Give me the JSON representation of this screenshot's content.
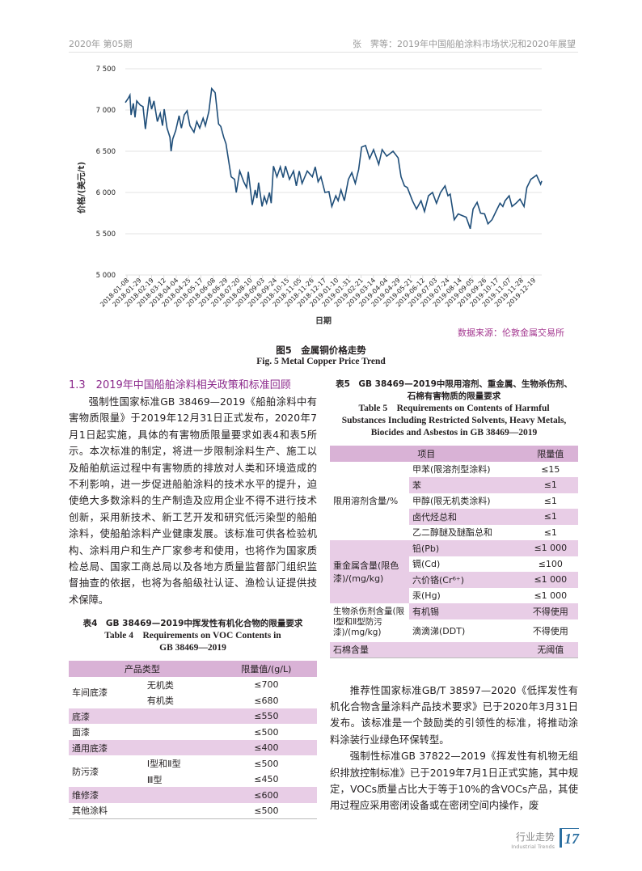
{
  "header": {
    "left": "2020年 第05期",
    "right": "张　霁等：2019年中国船舶涂料市场状况和2020年展望"
  },
  "figure": {
    "caption_cn": "图5　金属铜价格走势",
    "caption_en": "Fig. 5 Metal Copper Price Trend",
    "source": "数据来源：伦敦金属交易所"
  },
  "chart_data": {
    "type": "line",
    "xlabel": "日期",
    "ylabel": "价格/(美元/t)",
    "ylim": [
      5000,
      7500
    ],
    "yticks": [
      "7 500",
      "7 000",
      "6 500",
      "6 000",
      "5 500",
      "5 000"
    ],
    "ytick_values": [
      7500,
      7000,
      6500,
      6000,
      5500,
      5000
    ],
    "grid": true,
    "line_color": "#1f4e79",
    "xticks": [
      "2018-01-08",
      "2018-01-29",
      "2018-02-19",
      "2018-03-12",
      "2018-04-04",
      "2018-04-25",
      "2018-05-17",
      "2018-06-08",
      "2018-06-29",
      "2018-07-20",
      "2018-08-10",
      "2018-09-03",
      "2018-09-24",
      "2018-10-15",
      "2018-11-05",
      "2018-11-26",
      "2018-12-17",
      "2019-01-10",
      "2019-01-31",
      "2019-02-21",
      "2019-03-14",
      "2019-04-04",
      "2019-04-29",
      "2019-05-21",
      "2019-06-12",
      "2019-07-03",
      "2019-07-24",
      "2019-08-14",
      "2019-09-05",
      "2019-09-26",
      "2019-10-17",
      "2019-11-07",
      "2019-11-28",
      "2019-12-19"
    ],
    "x": [
      "2018-01-02",
      "2018-01-07",
      "2018-01-10",
      "2018-01-12",
      "2018-01-16",
      "2018-01-19",
      "2018-01-22",
      "2018-01-28",
      "2018-02-02",
      "2018-02-06",
      "2018-02-13",
      "2018-02-17",
      "2018-02-21",
      "2018-02-27",
      "2018-03-04",
      "2018-03-08",
      "2018-03-11",
      "2018-03-16",
      "2018-03-21",
      "2018-03-23",
      "2018-03-26",
      "2018-03-31",
      "2018-04-06",
      "2018-04-10",
      "2018-04-15",
      "2018-04-20",
      "2018-04-25",
      "2018-05-02",
      "2018-05-07",
      "2018-05-12",
      "2018-05-18",
      "2018-05-22",
      "2018-05-28",
      "2018-06-02",
      "2018-06-08",
      "2018-06-14",
      "2018-06-18",
      "2018-06-23",
      "2018-06-27",
      "2018-07-02",
      "2018-07-06",
      "2018-07-12",
      "2018-07-15",
      "2018-07-21",
      "2018-07-28",
      "2018-08-02",
      "2018-08-05",
      "2018-08-12",
      "2018-08-17",
      "2018-08-20",
      "2018-08-23",
      "2018-08-29",
      "2018-09-02",
      "2018-09-06",
      "2018-09-11",
      "2018-09-14",
      "2018-09-18",
      "2018-09-24",
      "2018-09-30",
      "2018-10-05",
      "2018-10-09",
      "2018-10-16",
      "2018-10-23",
      "2018-10-28",
      "2018-11-02",
      "2018-11-07",
      "2018-11-16",
      "2018-11-25",
      "2018-11-30",
      "2018-12-05",
      "2018-12-10",
      "2018-12-17",
      "2018-12-24",
      "2018-12-29",
      "2019-01-05",
      "2019-01-09",
      "2019-01-14",
      "2019-01-20",
      "2019-01-27",
      "2019-02-02",
      "2019-02-08",
      "2019-02-14",
      "2019-02-19",
      "2019-02-26",
      "2019-03-05",
      "2019-03-12",
      "2019-03-21",
      "2019-03-27",
      "2019-04-04",
      "2019-04-15",
      "2019-04-24",
      "2019-04-29",
      "2019-05-05",
      "2019-05-10",
      "2019-05-19",
      "2019-05-26",
      "2019-06-03",
      "2019-06-09",
      "2019-06-16",
      "2019-06-23",
      "2019-06-30",
      "2019-07-07",
      "2019-07-15",
      "2019-07-20",
      "2019-07-24",
      "2019-07-31",
      "2019-08-07",
      "2019-08-14",
      "2019-08-21",
      "2019-08-28",
      "2019-09-02",
      "2019-09-09",
      "2019-09-15",
      "2019-09-22",
      "2019-09-28",
      "2019-10-05",
      "2019-10-12",
      "2019-10-19",
      "2019-10-24",
      "2019-10-28",
      "2019-11-04",
      "2019-11-09",
      "2019-11-16",
      "2019-11-23",
      "2019-11-30",
      "2019-12-05",
      "2019-12-12",
      "2019-12-22",
      "2019-12-29",
      "2019-12-31"
    ],
    "y": [
      7090,
      7140,
      7180,
      6940,
      7080,
      6910,
      7110,
      7060,
      7040,
      6770,
      7160,
      7010,
      7110,
      6860,
      6960,
      6810,
      7010,
      6780,
      6670,
      6500,
      6650,
      6750,
      6930,
      6780,
      6940,
      6990,
      6810,
      6730,
      6860,
      6780,
      6900,
      6810,
      6980,
      7260,
      7210,
      6830,
      6800,
      6670,
      6590,
      6370,
      6190,
      6160,
      6000,
      6260,
      6130,
      6060,
      6250,
      5850,
      6030,
      5930,
      6120,
      5830,
      5950,
      5870,
      6000,
      5870,
      6320,
      6190,
      6310,
      6180,
      6320,
      6160,
      6260,
      6080,
      6260,
      6110,
      6260,
      6190,
      6310,
      6130,
      6190,
      6000,
      6010,
      5830,
      5960,
      5900,
      6030,
      5900,
      6160,
      6240,
      6110,
      6280,
      6550,
      6570,
      6410,
      6520,
      6340,
      6520,
      6440,
      6500,
      6420,
      6190,
      6080,
      6060,
      5900,
      5800,
      5900,
      5770,
      5960,
      6000,
      5870,
      6000,
      6080,
      5960,
      5980,
      5670,
      5740,
      5720,
      5700,
      5560,
      5800,
      5880,
      5750,
      5740,
      5620,
      5670,
      5770,
      5870,
      5830,
      5900,
      5960,
      5830,
      5870,
      5920,
      5830,
      6060,
      6160,
      6210,
      6100,
      6140
    ]
  },
  "left": {
    "section": "1.3　2019年中国船舶涂料相关政策和标准回顾",
    "paragraph": "强制性国家标准GB 38469—2019《船舶涂料中有害物质限量》于2019年12月31日正式发布，2020年7月1日起实施，具体的有害物质限量要求如表4和表5所示。本次标准的制定，将进一步限制涂料生产、施工以及船舶航运过程中有害物质的排放对人类和环境造成的不利影响，进一步促进船舶涂料的技术水平的提升，迫使绝大多数涂料的生产制造及应用企业不得不进行技术创新，采用新技术、新工艺开发和研究低污染型的船舶涂料，使船舶涂料产业健康发展。该标准可供各检验机构、涂料用户和生产厂家参考和使用，也将作为国家质检总局、国家工商总局以及各地方质量监督部门组织监督抽查的依据，也将为各船级社认证、渔检认证提供技术保障。"
  },
  "table4": {
    "caption_cn": "表4　GB 38469—2019中挥发性有机化合物的限量要求",
    "caption_en1": "Table 4　Requirements on VOC Contents in",
    "caption_en2": "GB 38469—2019",
    "head": [
      "产品类型",
      "限量值/(g/L)"
    ],
    "rows": [
      {
        "cat": "车间底漆",
        "sub": "无机类",
        "val": "≤700"
      },
      {
        "sub": "有机类",
        "val": "≤680"
      },
      {
        "cat": "底漆",
        "val": "≤550"
      },
      {
        "cat": "面漆",
        "val": "≤500"
      },
      {
        "cat": "通用底漆",
        "val": "≤400"
      },
      {
        "cat": "防污漆",
        "sub": "Ⅰ型和Ⅱ型",
        "val": "≤500"
      },
      {
        "sub": "Ⅲ型",
        "val": "≤450"
      },
      {
        "cat": "维修漆",
        "val": "≤600"
      },
      {
        "cat": "其他涂料",
        "val": "≤500"
      }
    ]
  },
  "table5": {
    "caption_cn1": "表5　GB 38469—2019中限用溶剂、重金属、生物杀伤剂、",
    "caption_cn2": "石棉有害物质的限量要求",
    "caption_en1": "Table 5　Requirements on Contents of Harmful",
    "caption_en2": "Substances Including Restricted Solvents, Heavy Metals,",
    "caption_en3": "Biocides and Asbestos in GB 38469—2019",
    "head": [
      "项目",
      "限量值"
    ],
    "groups": [
      {
        "cat": "限用溶剂含量/%",
        "items": [
          {
            "sub": "甲苯(限溶剂型涂料)",
            "val": "≤15"
          },
          {
            "sub": "苯",
            "val": "≤1"
          },
          {
            "sub": "甲醇(限无机类涂料)",
            "val": "≤1"
          },
          {
            "sub": "卤代烃总和",
            "val": "≤1"
          },
          {
            "sub": "乙二醇醚及醚酯总和",
            "val": "≤1"
          }
        ]
      },
      {
        "cat": "重金属含量(限色漆)/(mg/kg)",
        "items": [
          {
            "sub": "铅(Pb)",
            "val": "≤1 000"
          },
          {
            "sub": "镉(Cd)",
            "val": "≤100"
          },
          {
            "sub": "六价铬(Cr⁶⁺)",
            "val": "≤1 000"
          },
          {
            "sub": "汞(Hg)",
            "val": "≤1 000"
          }
        ]
      },
      {
        "cat": "生物杀伤剂含量(限Ⅰ型和Ⅱ型防污漆)/(mg/kg)",
        "items": [
          {
            "sub": "有机锡",
            "val": "不得使用"
          },
          {
            "sub": "滴滴涕(DDT)",
            "val": "不得使用"
          }
        ]
      },
      {
        "cat": "石棉含量",
        "val": "无阈值"
      }
    ]
  },
  "right": {
    "p1": "推荐性国家标准GB/T 38597—2020《低挥发性有机化合物含量涂料产品技术要求》已于2020年3月31日发布。该标准是一个鼓励类的引领性的标准，将推动涂料涂装行业绿色环保转型。",
    "p2": "强制性标准GB 37822—2019《挥发性有机物无组织排放控制标准》已于2019年7月1日正式实施，其中规定，VOCs质量占比大于等于10%的含VOCs产品，其使用过程应采用密闭设备或在密闭空间内操作，废"
  },
  "footer": {
    "section_cn": "行业走势",
    "section_en": "Industrial Trends",
    "page": "17"
  }
}
